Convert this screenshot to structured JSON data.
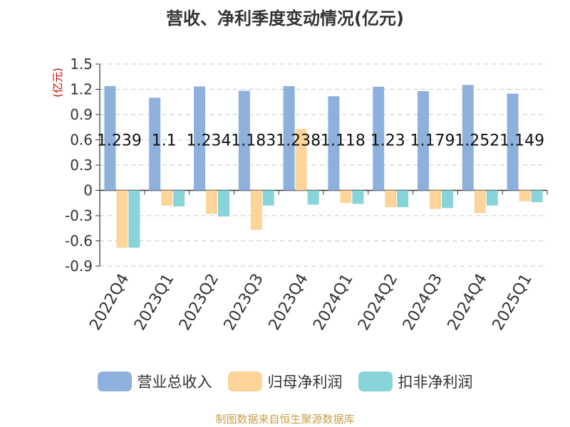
{
  "chart_data": {
    "type": "bar",
    "title": "营收、净利季度变动情况(亿元)",
    "ylabel": "(亿元)",
    "xlabel": "",
    "ylim": [
      -0.9,
      1.5
    ],
    "yticks": [
      -0.9,
      -0.6,
      -0.3,
      0,
      0.3,
      0.6,
      0.9,
      1.2,
      1.5
    ],
    "yticks_text": [
      "-0.9",
      "-0.6",
      "-0.3",
      "0",
      "0.3",
      "0.6",
      "0.9",
      "1.2",
      "1.5"
    ],
    "grid": true,
    "categories": [
      "2022Q4",
      "2023Q1",
      "2023Q2",
      "2023Q3",
      "2023Q4",
      "2024Q1",
      "2024Q2",
      "2024Q3",
      "2024Q4",
      "2025Q1"
    ],
    "series": [
      {
        "name": "营业总收入",
        "color": "#8eb0dc",
        "values": [
          1.239,
          1.1,
          1.234,
          1.183,
          1.238,
          1.118,
          1.23,
          1.179,
          1.252,
          1.149
        ]
      },
      {
        "name": "归母净利润",
        "color": "#fdd59b",
        "values": [
          -0.68,
          -0.18,
          -0.28,
          -0.47,
          0.73,
          -0.15,
          -0.2,
          -0.22,
          -0.27,
          -0.13
        ]
      },
      {
        "name": "扣非净利润",
        "color": "#88d4d8",
        "values": [
          -0.68,
          -0.19,
          -0.31,
          -0.18,
          -0.17,
          -0.16,
          -0.2,
          -0.21,
          -0.18,
          -0.14
        ]
      }
    ],
    "data_labels": [
      "1.239",
      "1.1",
      "1.234",
      "1.183",
      "1.238",
      "1.118",
      "1.23",
      "1.179",
      "1.252",
      "1.149"
    ],
    "legend_position": "bottom"
  },
  "footer": {
    "source": "制图数据来自恒生聚源数据库"
  }
}
